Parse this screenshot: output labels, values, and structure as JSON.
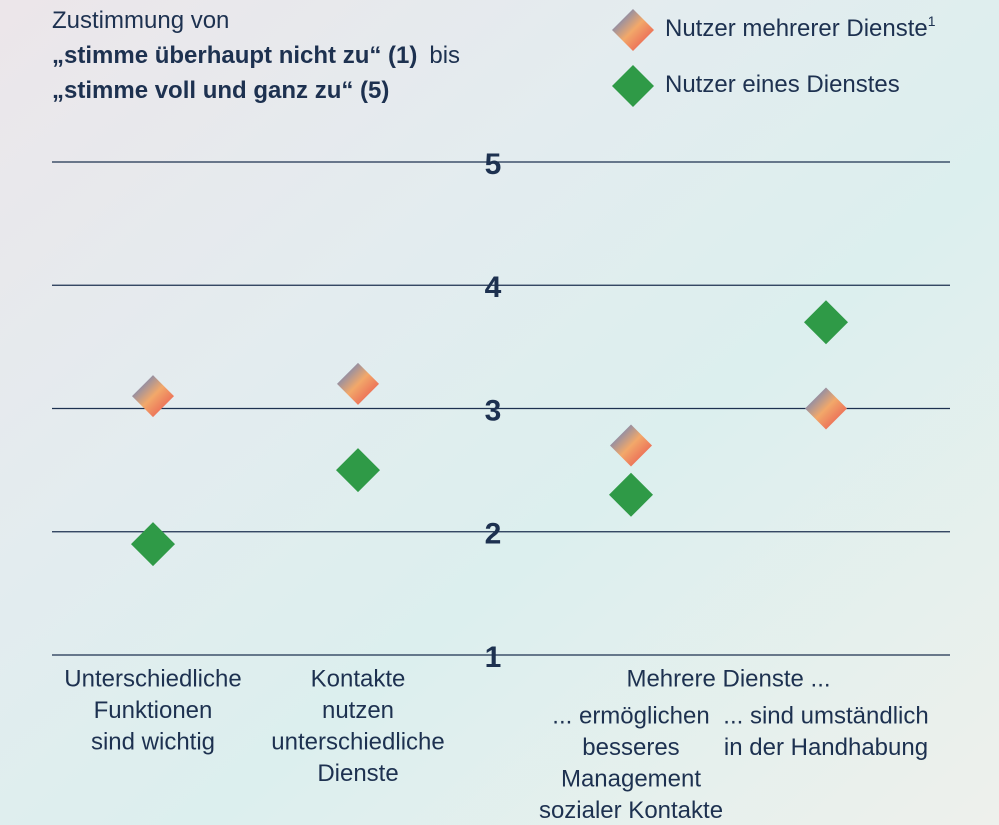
{
  "chart_data": {
    "type": "scatter",
    "title_lines": [
      [
        {
          "text": "Zustimmung von",
          "bold": false
        }
      ],
      [
        {
          "text": "„stimme  überhaupt nicht zu“ (1)",
          "bold": true
        },
        {
          "text": "bis",
          "bold": false
        }
      ],
      [
        {
          "text": "„stimme voll und ganz zu“ (5)",
          "bold": true
        }
      ]
    ],
    "categories": [
      [
        "Unterschiedliche",
        "Funktionen",
        "sind wichtig"
      ],
      [
        "Kontakte",
        "nutzen",
        "unterschiedliche",
        "Dienste"
      ],
      [
        "... ermöglichen",
        "besseres",
        "Management",
        "sozialer Kontakte"
      ],
      [
        "... sind umständlich",
        "in der Handhabung"
      ]
    ],
    "group_label": "Mehrere Dienste ...",
    "series": [
      {
        "name": "Nutzer mehrerer Dienste",
        "footnote": "1",
        "colors": [
          "#3f78d6",
          "#f2a86a",
          "#e8474a"
        ],
        "values": [
          3.1,
          3.2,
          2.7,
          3.0
        ]
      },
      {
        "name": "Nutzer eines Dienstes",
        "color": "#2f9a47",
        "values": [
          1.9,
          2.5,
          2.3,
          3.7
        ]
      }
    ],
    "ylim": [
      1,
      5
    ],
    "yticks": [
      1,
      2,
      3,
      4,
      5
    ],
    "grid": true
  }
}
